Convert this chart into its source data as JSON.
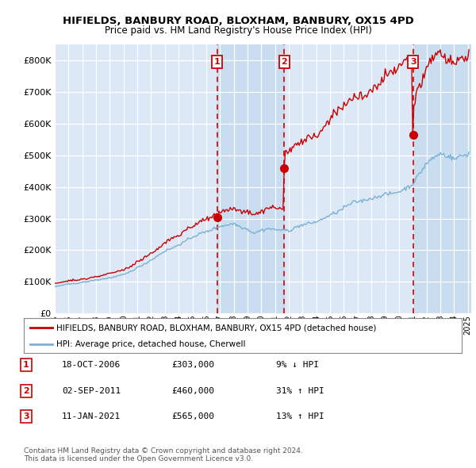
{
  "title": "HIFIELDS, BANBURY ROAD, BLOXHAM, BANBURY, OX15 4PD",
  "subtitle": "Price paid vs. HM Land Registry's House Price Index (HPI)",
  "ylim": [
    0,
    850000
  ],
  "yticks": [
    0,
    100000,
    200000,
    300000,
    400000,
    500000,
    600000,
    700000,
    800000
  ],
  "sale_dates_decimal": [
    2006.792,
    2011.667,
    2021.036
  ],
  "sale_prices": [
    303000,
    460000,
    565000
  ],
  "sale_labels": [
    "1",
    "2",
    "3"
  ],
  "vline_color": "#cc0000",
  "hpi_line_color": "#7ab0d4",
  "sale_line_color": "#cc0000",
  "dot_color": "#cc0000",
  "legend_label_sale": "HIFIELDS, BANBURY ROAD, BLOXHAM, BANBURY, OX15 4PD (detached house)",
  "legend_label_hpi": "HPI: Average price, detached house, Cherwell",
  "table_rows": [
    {
      "num": "1",
      "date": "18-OCT-2006",
      "price": "£303,000",
      "pct": "9% ↓ HPI"
    },
    {
      "num": "2",
      "date": "02-SEP-2011",
      "price": "£460,000",
      "pct": "31% ↑ HPI"
    },
    {
      "num": "3",
      "date": "11-JAN-2021",
      "price": "£565,000",
      "pct": "13% ↑ HPI"
    }
  ],
  "footnote": "Contains HM Land Registry data © Crown copyright and database right 2024.\nThis data is licensed under the Open Government Licence v3.0.",
  "background_color": "#ffffff",
  "plot_bg_color": "#dce8f5",
  "shade_color": "#c8ddf0"
}
